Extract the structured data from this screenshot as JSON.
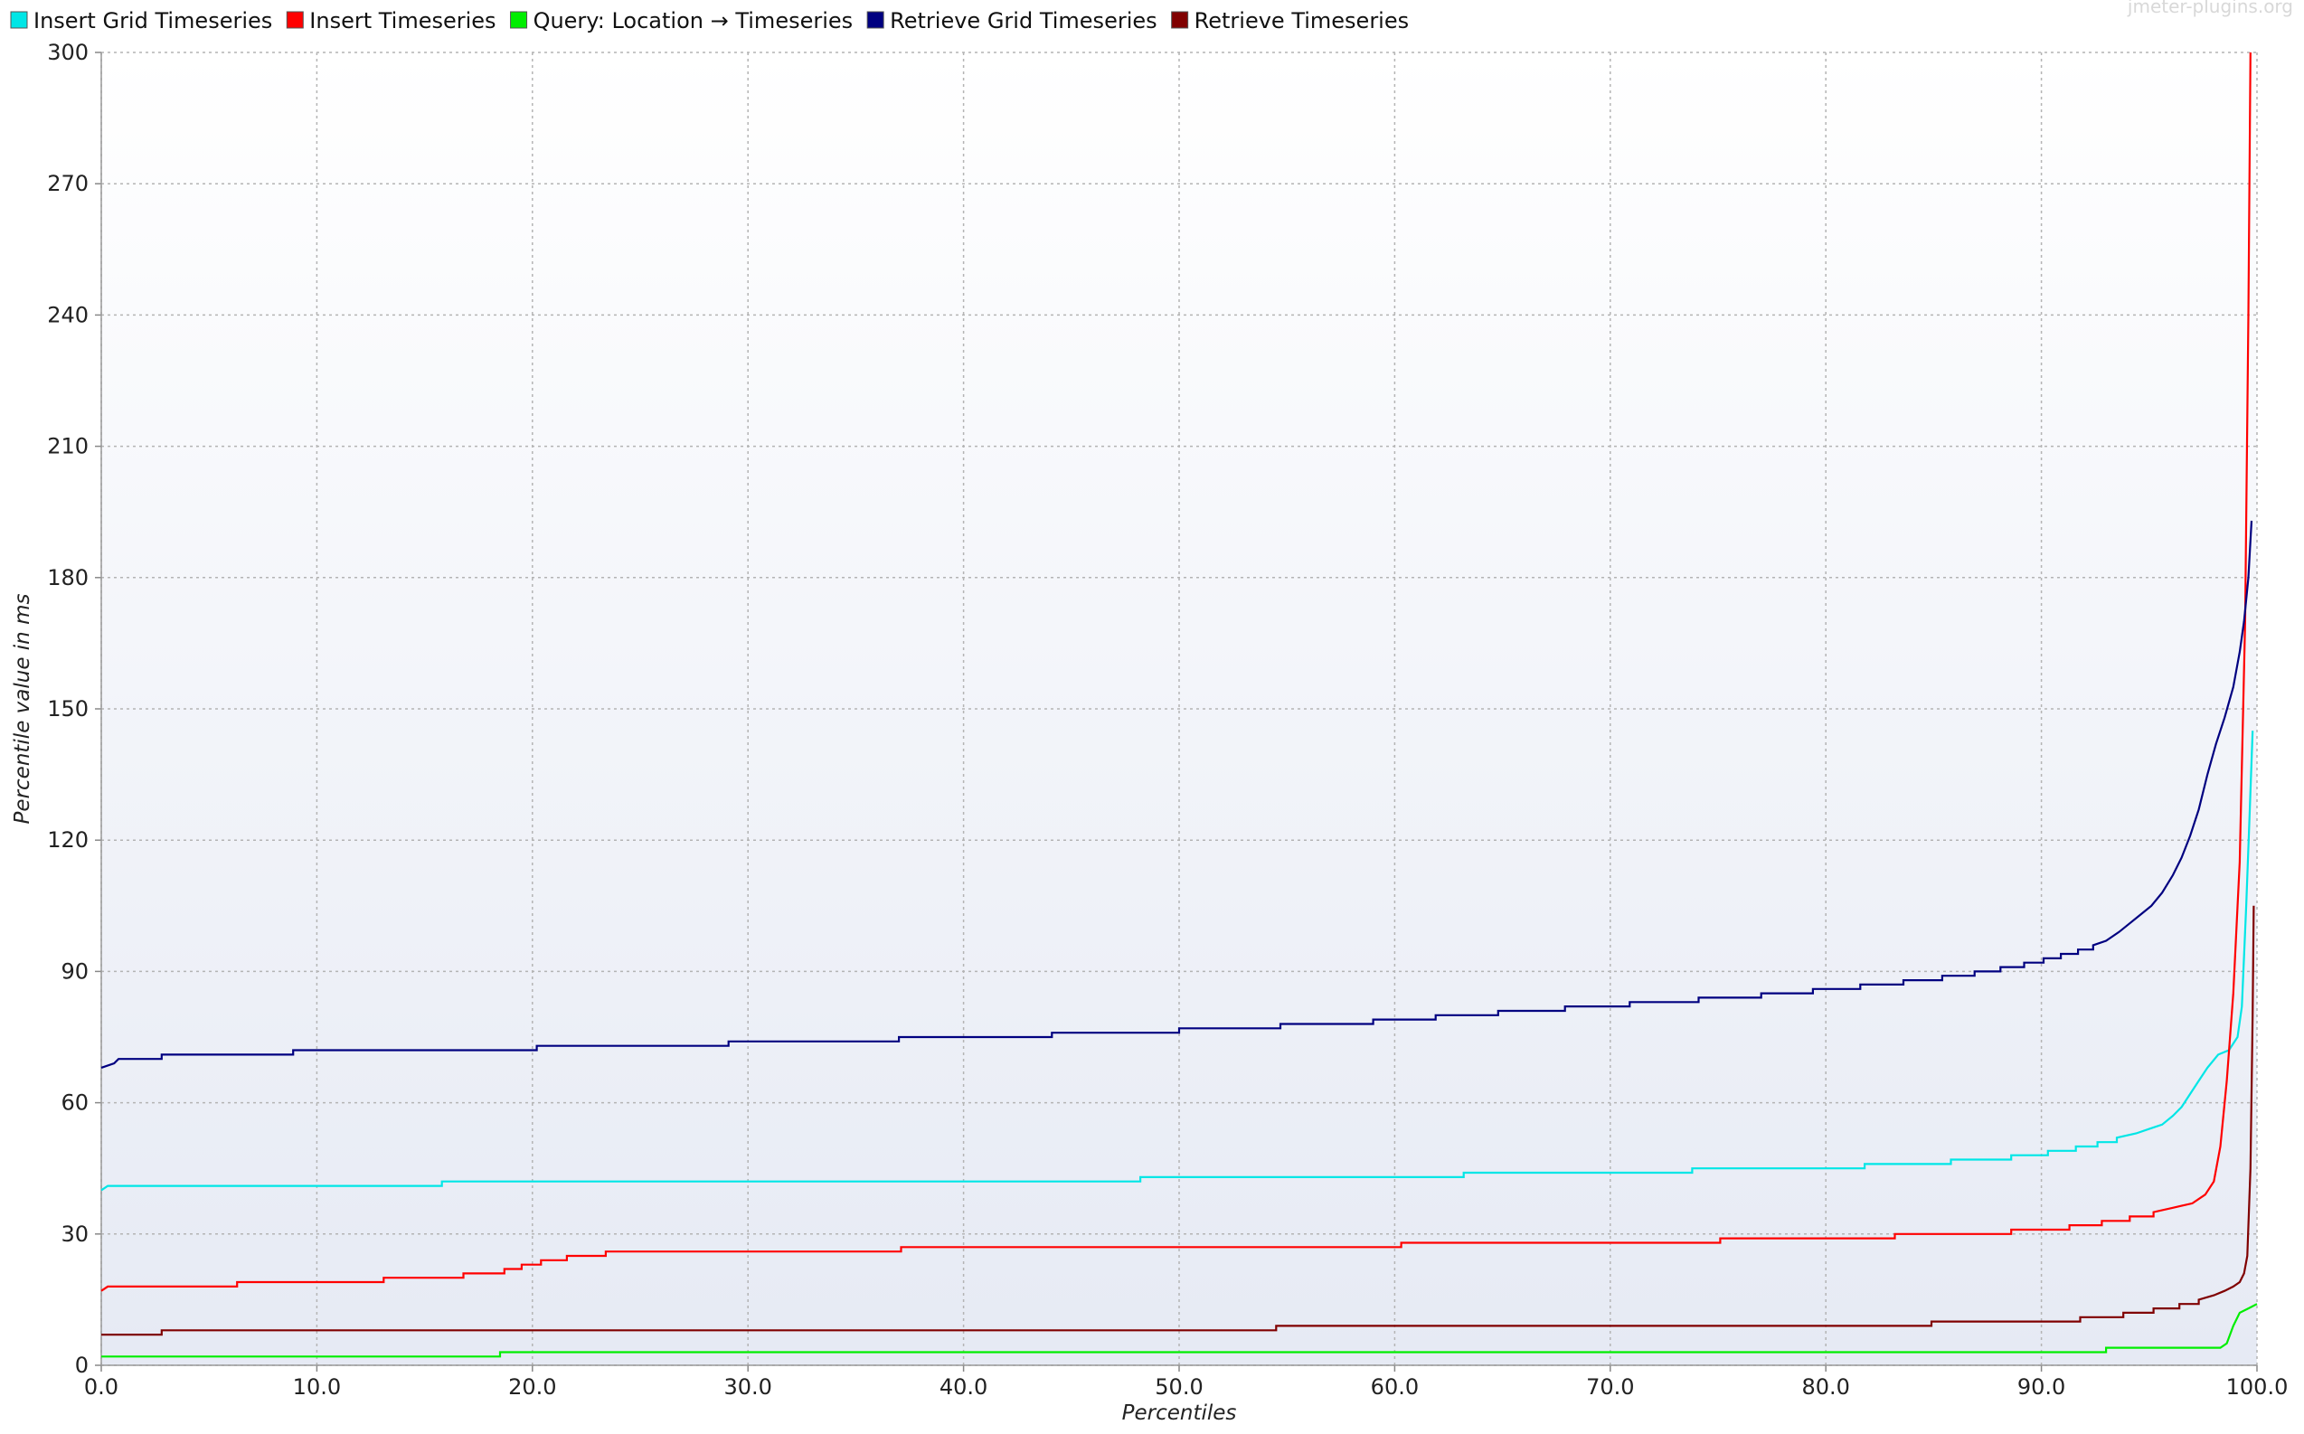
{
  "watermark": "jmeter-plugins.org",
  "chart_data": {
    "type": "line",
    "xlabel": "Percentiles",
    "ylabel": "Percentile value in ms",
    "xlim": [
      0,
      100
    ],
    "ylim": [
      0,
      300
    ],
    "x_ticks": [
      "0.0",
      "10.0",
      "20.0",
      "30.0",
      "40.0",
      "50.0",
      "60.0",
      "70.0",
      "80.0",
      "90.0",
      "100.0"
    ],
    "y_ticks": [
      "0",
      "30",
      "60",
      "90",
      "120",
      "150",
      "180",
      "210",
      "240",
      "270",
      "300"
    ],
    "grid": true,
    "legend_position": "top-left",
    "series": [
      {
        "name": "Insert Grid Timeseries",
        "color": "#00e6e6",
        "points": [
          [
            0,
            40
          ],
          [
            0.3,
            41
          ],
          [
            15.8,
            41
          ],
          [
            15.8,
            42
          ],
          [
            48.2,
            42
          ],
          [
            48.2,
            43
          ],
          [
            63.2,
            43
          ],
          [
            63.2,
            44
          ],
          [
            73.8,
            44
          ],
          [
            73.8,
            45
          ],
          [
            81.8,
            45
          ],
          [
            81.8,
            46
          ],
          [
            85.8,
            46
          ],
          [
            85.8,
            47
          ],
          [
            88.6,
            47
          ],
          [
            88.6,
            48
          ],
          [
            90.3,
            48
          ],
          [
            90.3,
            49
          ],
          [
            91.6,
            49
          ],
          [
            91.6,
            50
          ],
          [
            92.6,
            50
          ],
          [
            92.6,
            51
          ],
          [
            93.5,
            51
          ],
          [
            93.5,
            52
          ],
          [
            94.4,
            53
          ],
          [
            95.0,
            54
          ],
          [
            95.6,
            55
          ],
          [
            96.1,
            57
          ],
          [
            96.5,
            59
          ],
          [
            96.9,
            62
          ],
          [
            97.3,
            65
          ],
          [
            97.7,
            68
          ],
          [
            98.2,
            71
          ],
          [
            98.7,
            72
          ],
          [
            99.1,
            75
          ],
          [
            99.3,
            82
          ],
          [
            99.5,
            105
          ],
          [
            99.65,
            125
          ],
          [
            99.8,
            145
          ]
        ]
      },
      {
        "name": "Insert Timeseries",
        "color": "#ff0000",
        "points": [
          [
            0,
            17
          ],
          [
            0.3,
            18
          ],
          [
            6.3,
            18
          ],
          [
            6.3,
            19
          ],
          [
            13.1,
            19
          ],
          [
            13.1,
            20
          ],
          [
            16.8,
            20
          ],
          [
            16.8,
            21
          ],
          [
            18.7,
            21
          ],
          [
            18.7,
            22
          ],
          [
            19.5,
            22
          ],
          [
            19.5,
            23
          ],
          [
            20.4,
            23
          ],
          [
            20.4,
            24
          ],
          [
            21.6,
            24
          ],
          [
            21.6,
            25
          ],
          [
            23.4,
            25
          ],
          [
            23.4,
            26
          ],
          [
            37.1,
            26
          ],
          [
            37.1,
            27
          ],
          [
            60.3,
            27
          ],
          [
            60.3,
            28
          ],
          [
            75.1,
            28
          ],
          [
            75.1,
            29
          ],
          [
            83.2,
            29
          ],
          [
            83.2,
            30
          ],
          [
            88.6,
            30
          ],
          [
            88.6,
            31
          ],
          [
            91.3,
            31
          ],
          [
            91.3,
            32
          ],
          [
            92.8,
            32
          ],
          [
            92.8,
            33
          ],
          [
            94.1,
            33
          ],
          [
            94.1,
            34
          ],
          [
            95.2,
            34
          ],
          [
            95.2,
            35
          ],
          [
            96.1,
            36
          ],
          [
            97.0,
            37
          ],
          [
            97.6,
            39
          ],
          [
            98.0,
            42
          ],
          [
            98.3,
            50
          ],
          [
            98.6,
            65
          ],
          [
            98.9,
            85
          ],
          [
            99.2,
            115
          ],
          [
            99.45,
            170
          ],
          [
            99.6,
            240
          ],
          [
            99.7,
            300
          ]
        ]
      },
      {
        "name": "Query: Location → Timeseries",
        "color": "#00ee00",
        "points": [
          [
            0,
            2
          ],
          [
            18.5,
            2
          ],
          [
            18.5,
            3
          ],
          [
            93.0,
            3
          ],
          [
            93.0,
            4
          ],
          [
            98.3,
            4
          ],
          [
            98.6,
            5
          ],
          [
            98.9,
            9
          ],
          [
            99.2,
            12
          ],
          [
            99.6,
            13
          ],
          [
            100,
            14
          ]
        ]
      },
      {
        "name": "Retrieve Grid Timeseries",
        "color": "#000080",
        "points": [
          [
            0,
            68
          ],
          [
            0.6,
            69
          ],
          [
            0.8,
            70
          ],
          [
            2.8,
            70
          ],
          [
            2.8,
            71
          ],
          [
            8.9,
            71
          ],
          [
            8.9,
            72
          ],
          [
            20.2,
            72
          ],
          [
            20.2,
            73
          ],
          [
            29.1,
            73
          ],
          [
            29.1,
            74
          ],
          [
            37.0,
            74
          ],
          [
            37.0,
            75
          ],
          [
            44.1,
            75
          ],
          [
            44.1,
            76
          ],
          [
            50.0,
            76
          ],
          [
            50.0,
            77
          ],
          [
            54.7,
            77
          ],
          [
            54.7,
            78
          ],
          [
            59.0,
            78
          ],
          [
            59.0,
            79
          ],
          [
            61.9,
            79
          ],
          [
            61.9,
            80
          ],
          [
            64.8,
            80
          ],
          [
            64.8,
            81
          ],
          [
            67.9,
            81
          ],
          [
            67.9,
            82
          ],
          [
            70.9,
            82
          ],
          [
            70.9,
            83
          ],
          [
            74.1,
            83
          ],
          [
            74.1,
            84
          ],
          [
            77.0,
            84
          ],
          [
            77.0,
            85
          ],
          [
            79.4,
            85
          ],
          [
            79.4,
            86
          ],
          [
            81.6,
            86
          ],
          [
            81.6,
            87
          ],
          [
            83.6,
            87
          ],
          [
            83.6,
            88
          ],
          [
            85.4,
            88
          ],
          [
            85.4,
            89
          ],
          [
            86.9,
            89
          ],
          [
            86.9,
            90
          ],
          [
            88.1,
            90
          ],
          [
            88.1,
            91
          ],
          [
            89.2,
            91
          ],
          [
            89.2,
            92
          ],
          [
            90.1,
            92
          ],
          [
            90.1,
            93
          ],
          [
            90.9,
            93
          ],
          [
            90.9,
            94
          ],
          [
            91.7,
            94
          ],
          [
            91.7,
            95
          ],
          [
            92.4,
            95
          ],
          [
            92.4,
            96
          ],
          [
            93.0,
            97
          ],
          [
            93.6,
            99
          ],
          [
            94.1,
            101
          ],
          [
            94.6,
            103
          ],
          [
            95.1,
            105
          ],
          [
            95.6,
            108
          ],
          [
            96.1,
            112
          ],
          [
            96.5,
            116
          ],
          [
            96.9,
            121
          ],
          [
            97.3,
            127
          ],
          [
            97.7,
            135
          ],
          [
            98.1,
            142
          ],
          [
            98.5,
            148
          ],
          [
            98.9,
            155
          ],
          [
            99.2,
            163
          ],
          [
            99.4,
            170
          ],
          [
            99.6,
            180
          ],
          [
            99.75,
            193
          ]
        ]
      },
      {
        "name": "Retrieve Timeseries",
        "color": "#800000",
        "points": [
          [
            0,
            7
          ],
          [
            2.8,
            7
          ],
          [
            2.8,
            8
          ],
          [
            54.5,
            8
          ],
          [
            54.5,
            9
          ],
          [
            84.9,
            9
          ],
          [
            84.9,
            10
          ],
          [
            91.8,
            10
          ],
          [
            91.8,
            11
          ],
          [
            93.8,
            11
          ],
          [
            93.8,
            12
          ],
          [
            95.2,
            12
          ],
          [
            95.2,
            13
          ],
          [
            96.4,
            13
          ],
          [
            96.4,
            14
          ],
          [
            97.3,
            14
          ],
          [
            97.3,
            15
          ],
          [
            98.0,
            16
          ],
          [
            98.5,
            17
          ],
          [
            98.9,
            18
          ],
          [
            99.2,
            19
          ],
          [
            99.4,
            21
          ],
          [
            99.55,
            25
          ],
          [
            99.7,
            45
          ],
          [
            99.8,
            80
          ],
          [
            99.85,
            105
          ]
        ]
      }
    ]
  }
}
